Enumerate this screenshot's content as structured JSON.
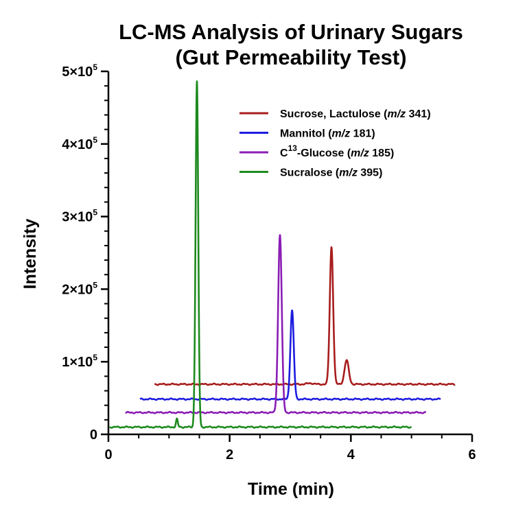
{
  "chart_data": {
    "type": "line",
    "title": "LC-MS Analysis of Urinary Sugars",
    "subtitle": "(Gut Permeability Test)",
    "xlabel": "Time (min)",
    "ylabel": "Intensity",
    "xlim": [
      0,
      6
    ],
    "ylim": [
      0,
      500000
    ],
    "x_ticks": [
      0,
      2,
      4,
      6
    ],
    "x_tick_labels": [
      "0",
      "2",
      "4",
      "6"
    ],
    "y_ticks": [
      0,
      100000,
      200000,
      300000,
      400000,
      500000
    ],
    "y_tick_labels": [
      {
        "base": "0",
        "exp": ""
      },
      {
        "base": "1×10",
        "exp": "5"
      },
      {
        "base": "2×10",
        "exp": "5"
      },
      {
        "base": "3×10",
        "exp": "5"
      },
      {
        "base": "4×10",
        "exp": "5"
      },
      {
        "base": "5×10",
        "exp": "5"
      }
    ],
    "grid": false,
    "legend_position": "top-right",
    "series": [
      {
        "name": "Sucrose, Lactulose (m/z 341)",
        "legend_prefix": "Sucrose, Lactulose (",
        "legend_italic": "m/z",
        "legend_suffix": " 341)",
        "color": "#a81c1c",
        "x_range": [
          0.76,
          5.72
        ],
        "baseline": 69000,
        "peaks": [
          {
            "rt": 3.33,
            "height": 1500,
            "width": 0.05
          },
          {
            "rt": 3.68,
            "height": 189000,
            "width": 0.028
          },
          {
            "rt": 3.93,
            "height": 33000,
            "width": 0.035
          }
        ]
      },
      {
        "name": "Mannitol (m/z 181)",
        "legend_prefix": "Mannitol (",
        "legend_italic": "m/z",
        "legend_suffix": " 181)",
        "color": "#1c1ce0",
        "x_range": [
          0.52,
          5.48
        ],
        "baseline": 48500,
        "peaks": [
          {
            "rt": 3.03,
            "height": 122000,
            "width": 0.028
          }
        ]
      },
      {
        "name": "C13-Glucose (m/z 185)",
        "legend_prefix": "C",
        "legend_sup": "13",
        "legend_mid": "-Glucose (",
        "legend_italic": "m/z",
        "legend_suffix": " 185)",
        "color": "#8a1cb4",
        "x_range": [
          0.28,
          5.24
        ],
        "baseline": 30000,
        "peaks": [
          {
            "rt": 2.83,
            "height": 245000,
            "width": 0.03
          }
        ]
      },
      {
        "name": "Sucralose (m/z 395)",
        "legend_prefix": "Sucralose (",
        "legend_italic": "m/z",
        "legend_suffix": " 395)",
        "color": "#1e8a1e",
        "x_range": [
          0.02,
          5.0
        ],
        "baseline": 10000,
        "peaks": [
          {
            "rt": 1.13,
            "height": 11000,
            "width": 0.015
          },
          {
            "rt": 1.46,
            "height": 476000,
            "width": 0.022
          }
        ]
      }
    ]
  }
}
